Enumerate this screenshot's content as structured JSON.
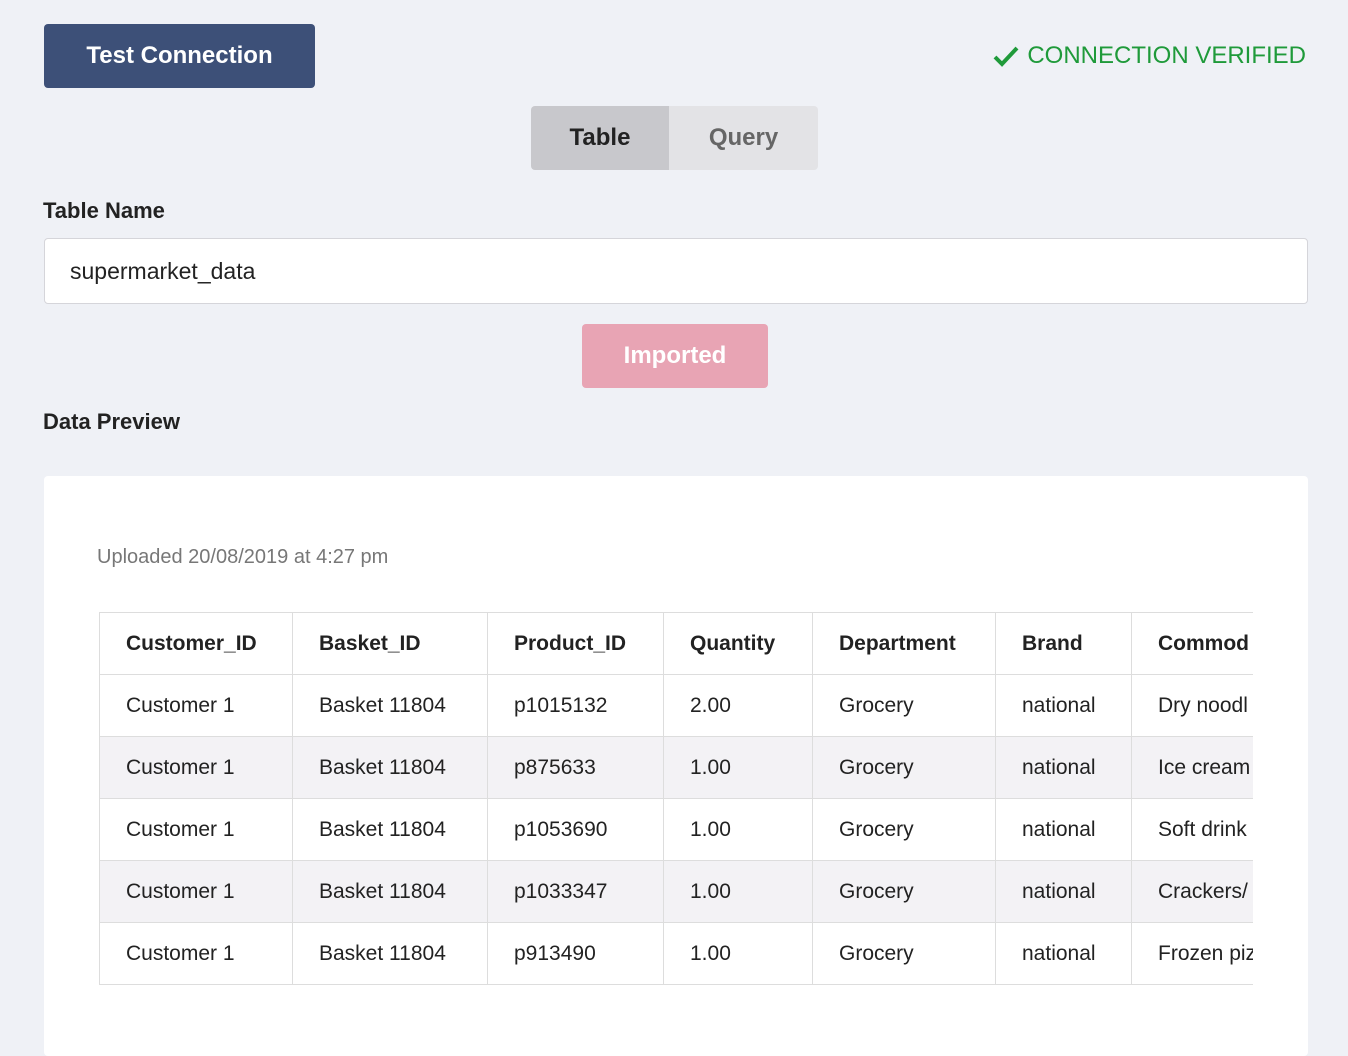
{
  "buttons": {
    "test_connection": "Test Connection",
    "imported": "Imported"
  },
  "status": "CONNECTION VERIFIED",
  "tabs": [
    "Table",
    "Query"
  ],
  "active_tab": 0,
  "table_name": {
    "label": "Table Name",
    "value": "supermarket_data"
  },
  "data_preview": {
    "title": "Data Preview",
    "uploaded": "Uploaded 20/08/2019 at 4:27 pm"
  },
  "table": {
    "columns": [
      "Customer_ID",
      "Basket_ID",
      "Product_ID",
      "Quantity",
      "Department",
      "Brand",
      "Commod"
    ],
    "rows": [
      [
        "Customer 1",
        "Basket 11804",
        "p1015132",
        "2.00",
        "Grocery",
        "national",
        "Dry noodl"
      ],
      [
        "Customer 1",
        "Basket 11804",
        "p875633",
        "1.00",
        "Grocery",
        "national",
        "Ice cream"
      ],
      [
        "Customer 1",
        "Basket 11804",
        "p1053690",
        "1.00",
        "Grocery",
        "national",
        "Soft drink"
      ],
      [
        "Customer 1",
        "Basket 11804",
        "p1033347",
        "1.00",
        "Grocery",
        "national",
        "Crackers/"
      ],
      [
        "Customer 1",
        "Basket 11804",
        "p913490",
        "1.00",
        "Grocery",
        "national",
        "Frozen piz"
      ]
    ]
  }
}
